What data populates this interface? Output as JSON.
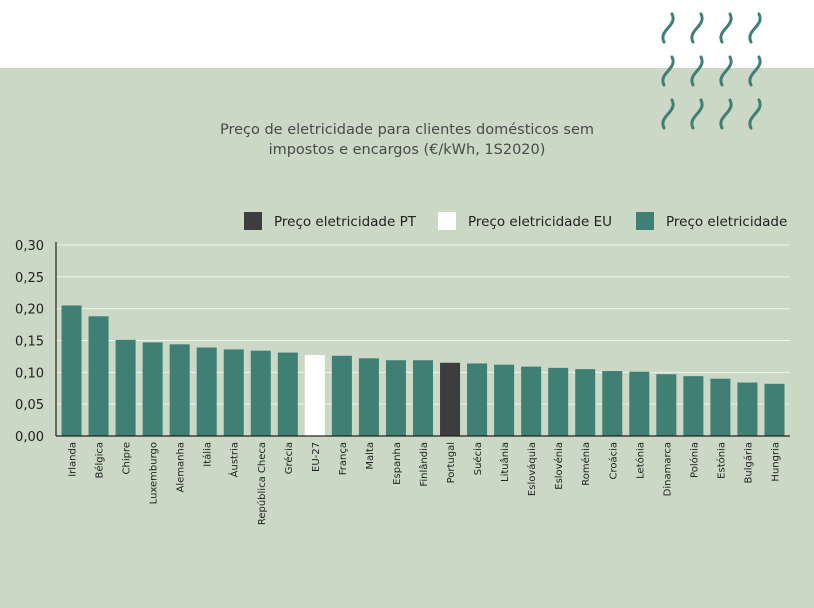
{
  "chart_data": {
    "type": "bar",
    "title_lines": [
      "Preço de eletricidade para clientes domésticos sem",
      "impostos e encargos (€/kWh, 1S2020)"
    ],
    "xlabel": "",
    "ylabel": "",
    "ylim": [
      0,
      0.3
    ],
    "yticks": [
      0,
      0.05,
      0.1,
      0.15,
      0.2,
      0.25,
      0.3
    ],
    "ytick_labels": [
      "0,00",
      "0,05",
      "0,10",
      "0,15",
      "0,20",
      "0,25",
      "0,30"
    ],
    "grid": true,
    "legend_position": "top-right",
    "legend": [
      {
        "label": "Preço eletricidade PT",
        "color": "#3d3d3f"
      },
      {
        "label": "Preço eletricidade EU",
        "color": "#ffffff"
      },
      {
        "label": "Preço eletricidade",
        "color": "#3f7f74"
      }
    ],
    "categories": [
      "Irlanda",
      "Bélgica",
      "Chipre",
      "Luxemburgo",
      "Alemanha",
      "Itália",
      "Áustria",
      "República Checa",
      "Grécia",
      "EU-27",
      "França",
      "Malta",
      "Espanha",
      "Finlândia",
      "Portugal",
      "Suécia",
      "Lituânia",
      "Eslováquia",
      "Eslovénia",
      "Roménia",
      "Croácia",
      "Letónia",
      "Dinamarca",
      "Polónia",
      "Estónia",
      "Bulgária",
      "Hungria"
    ],
    "values": [
      0.205,
      0.188,
      0.151,
      0.147,
      0.144,
      0.139,
      0.136,
      0.134,
      0.131,
      0.127,
      0.126,
      0.122,
      0.119,
      0.119,
      0.115,
      0.114,
      0.112,
      0.109,
      0.107,
      0.105,
      0.102,
      0.101,
      0.097,
      0.094,
      0.09,
      0.084,
      0.082
    ],
    "bar_groups": [
      "other",
      "other",
      "other",
      "other",
      "other",
      "other",
      "other",
      "other",
      "other",
      "eu",
      "other",
      "other",
      "other",
      "other",
      "pt",
      "other",
      "other",
      "other",
      "other",
      "other",
      "other",
      "other",
      "other",
      "other",
      "other",
      "other",
      "other"
    ],
    "colors": {
      "pt": "#3d3d3f",
      "eu": "#ffffff",
      "other": "#3f7f74",
      "grid": "#eef2ea",
      "axis": "#222222",
      "decor": "#3f7f74",
      "panel": "#cbd8c5"
    }
  }
}
